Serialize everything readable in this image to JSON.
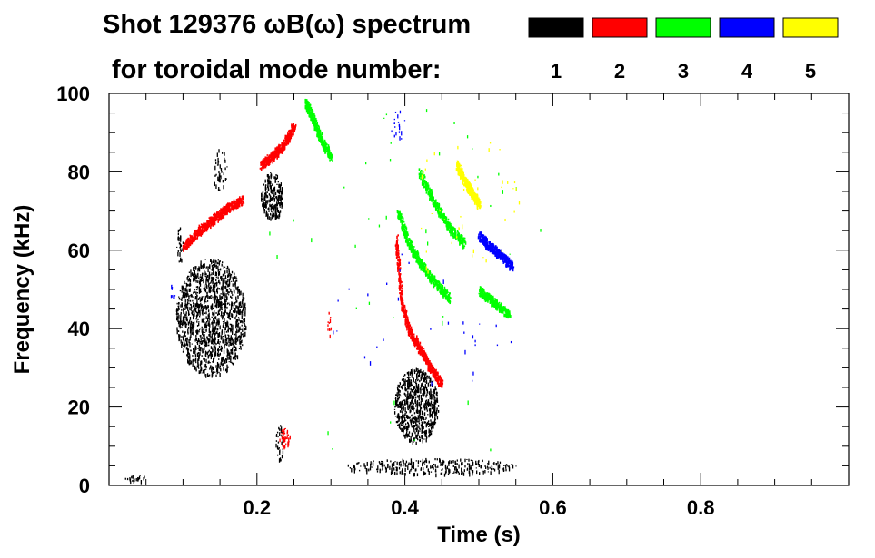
{
  "chart_data": {
    "type": "scatter",
    "title_line1": "Shot 129376 ωB(ω) spectrum",
    "title_line2": "for toroidal mode number:",
    "xlabel": "Time (s)",
    "ylabel": "Frequency (kHz)",
    "xlim": [
      0.0,
      1.0
    ],
    "ylim": [
      0,
      100
    ],
    "x_ticks": [
      0.2,
      0.4,
      0.6,
      0.8
    ],
    "x_tick_labels": [
      "0.2",
      "0.4",
      "0.6",
      "0.8"
    ],
    "y_ticks": [
      0,
      20,
      40,
      60,
      80,
      100
    ],
    "y_tick_labels": [
      "0",
      "20",
      "40",
      "60",
      "80",
      "100"
    ],
    "legend_position": "top-right",
    "legend": [
      {
        "label": "1",
        "color": "#000000"
      },
      {
        "label": "2",
        "color": "#ff0000"
      },
      {
        "label": "3",
        "color": "#00ff00"
      },
      {
        "label": "4",
        "color": "#0000ff"
      },
      {
        "label": "5",
        "color": "#ffff00"
      }
    ],
    "series": [
      {
        "name": "1",
        "color": "#000000",
        "clusters": [
          {
            "t": [
              0.09,
              0.185
            ],
            "f": [
              28,
              58
            ],
            "density": 1400
          },
          {
            "t": [
              0.205,
              0.235
            ],
            "f": [
              68,
              80
            ],
            "density": 240
          },
          {
            "t": [
              0.385,
              0.445
            ],
            "f": [
              11,
              30
            ],
            "density": 700
          },
          {
            "t": [
              0.32,
              0.55
            ],
            "f": [
              3,
              7
            ],
            "density": 300
          },
          {
            "t": [
              0.14,
              0.16
            ],
            "f": [
              74,
              87
            ],
            "density": 40
          },
          {
            "t": [
              0.09,
              0.1
            ],
            "f": [
              57,
              66
            ],
            "density": 30
          },
          {
            "t": [
              0.225,
              0.235
            ],
            "f": [
              6,
              16
            ],
            "density": 30
          },
          {
            "t": [
              0.02,
              0.05
            ],
            "f": [
              1,
              3
            ],
            "density": 20
          }
        ]
      },
      {
        "name": "2",
        "color": "#ff0000",
        "tracks": [
          {
            "t": [
              0.1,
              0.12,
              0.14,
              0.16,
              0.18
            ],
            "f": [
              61,
              65,
              68,
              71,
              73
            ]
          },
          {
            "t": [
              0.205,
              0.22,
              0.235,
              0.25
            ],
            "f": [
              82,
              84,
              87,
              92
            ]
          },
          {
            "t": [
              0.388,
              0.395,
              0.405,
              0.42,
              0.435,
              0.45
            ],
            "f": [
              63,
              47,
              40,
              35,
              30,
              26
            ]
          }
        ],
        "clusters": [
          {
            "t": [
              0.23,
              0.245
            ],
            "f": [
              10,
              15
            ],
            "density": 40
          },
          {
            "t": [
              0.295,
              0.3
            ],
            "f": [
              38,
              45
            ],
            "density": 12
          }
        ]
      },
      {
        "name": "3",
        "color": "#00ff00",
        "tracks": [
          {
            "t": [
              0.265,
              0.275,
              0.285,
              0.3
            ],
            "f": [
              98,
              94,
              89,
              84
            ]
          },
          {
            "t": [
              0.39,
              0.405,
              0.42,
              0.44,
              0.46
            ],
            "f": [
              70,
              62,
              57,
              52,
              48
            ]
          },
          {
            "t": [
              0.42,
              0.44,
              0.46,
              0.48
            ],
            "f": [
              80,
              72,
              66,
              62
            ]
          },
          {
            "t": [
              0.5,
              0.52,
              0.54
            ],
            "f": [
              50,
              47,
              44
            ]
          }
        ],
        "clusters": [
          {
            "t": [
              0.2,
              0.6
            ],
            "f": [
              0,
              100
            ],
            "density": 40
          }
        ]
      },
      {
        "name": "4",
        "color": "#0000ff",
        "tracks": [
          {
            "t": [
              0.5,
              0.515,
              0.53,
              0.545
            ],
            "f": [
              64,
              61,
              59,
              56
            ]
          }
        ],
        "clusters": [
          {
            "t": [
              0.38,
              0.4
            ],
            "f": [
              88,
              96
            ],
            "density": 20
          },
          {
            "t": [
              0.08,
              0.09
            ],
            "f": [
              48,
              52
            ],
            "density": 10
          },
          {
            "t": [
              0.3,
              0.55
            ],
            "f": [
              22,
              60
            ],
            "density": 30
          }
        ]
      },
      {
        "name": "5",
        "color": "#ffff00",
        "tracks": [
          {
            "t": [
              0.47,
              0.48,
              0.49,
              0.5
            ],
            "f": [
              82,
              78,
              75,
              72
            ]
          }
        ],
        "clusters": [
          {
            "t": [
              0.4,
              0.56
            ],
            "f": [
              50,
              90
            ],
            "density": 40
          }
        ]
      }
    ]
  }
}
